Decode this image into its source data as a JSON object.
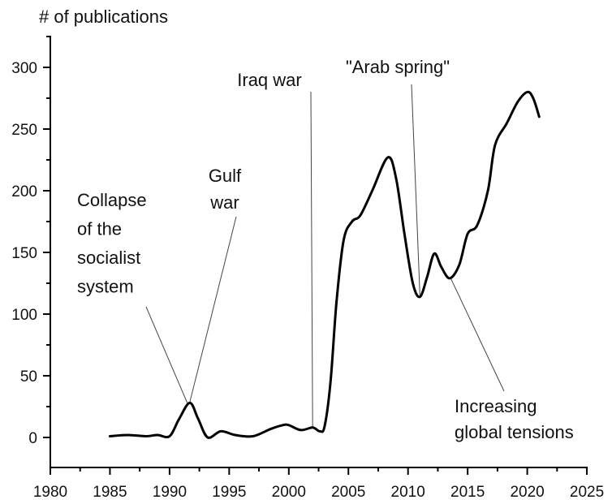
{
  "chart_data": {
    "type": "line",
    "title": "",
    "ylabel": "# of publications",
    "xlabel": "",
    "xlim": [
      1980,
      2025
    ],
    "ylim": [
      -25,
      320
    ],
    "grid": false,
    "legend": null,
    "x_ticks": [
      1980,
      1985,
      1990,
      1995,
      2000,
      2005,
      2010,
      2015,
      2020,
      2025
    ],
    "y_ticks": [
      0,
      50,
      100,
      150,
      200,
      250,
      300
    ],
    "series": [
      {
        "name": "# of publications",
        "color": "#000000",
        "x": [
          1985,
          1986.5,
          1988,
          1989,
          1990,
          1990.8,
          1991.7,
          1992.4,
          1993.2,
          1994.3,
          1995.5,
          1997,
          1998.5,
          1999.5,
          2000,
          2001,
          2002,
          2002.6,
          2003,
          2003.5,
          2004,
          2004.6,
          2005.3,
          2006,
          2007,
          2008.3,
          2009,
          2009.7,
          2010.4,
          2011,
          2011.6,
          2012.2,
          2012.8,
          2013.5,
          2014.3,
          2015,
          2015.8,
          2016.7,
          2017.3,
          2018.3,
          2019.2,
          2020,
          2020.5,
          2021
        ],
        "values": [
          1,
          2,
          1,
          2,
          1,
          15,
          28,
          15,
          0,
          5,
          2,
          1,
          7,
          10,
          10,
          6,
          8,
          5,
          9,
          45,
          110,
          160,
          175,
          180,
          200,
          227,
          210,
          165,
          125,
          114,
          130,
          149,
          138,
          129,
          140,
          165,
          172,
          200,
          237,
          255,
          272,
          280,
          275,
          260
        ]
      }
    ],
    "annotations": [
      {
        "lines": [
          "Collapse",
          "of the",
          "socialist",
          "system"
        ],
        "target_x": 1991.5,
        "target_y": 27
      },
      {
        "lines": [
          "Gulf",
          "war"
        ],
        "target_x": 1991.7,
        "target_y": 28
      },
      {
        "lines": [
          "Iraq war"
        ],
        "target_x": 2002,
        "target_y": 8
      },
      {
        "lines": [
          "\"Arab spring\""
        ],
        "target_x": 2011,
        "target_y": 114
      },
      {
        "lines": [
          "Increasing",
          "global tensions"
        ],
        "target_x": 2013.6,
        "target_y": 128
      }
    ]
  }
}
